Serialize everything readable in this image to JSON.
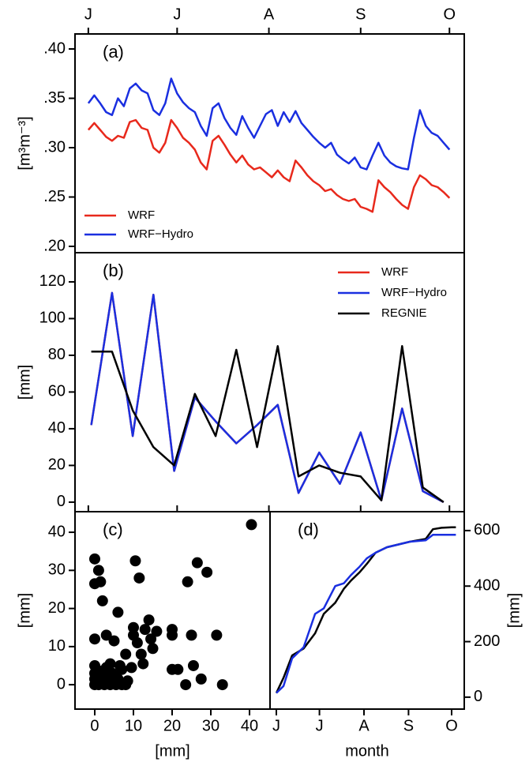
{
  "chart_data": [
    {
      "type": "line",
      "panel_label": "(a)",
      "y_label": "[m³m⁻³]",
      "x": [
        0,
        2,
        4,
        6,
        8,
        10,
        12,
        14,
        16,
        18,
        20,
        22,
        24,
        26,
        28,
        30,
        32,
        34,
        36,
        38,
        40,
        42,
        44,
        46,
        48,
        50,
        52,
        54,
        56,
        58,
        60,
        62,
        64,
        66,
        68,
        70,
        72,
        74,
        76,
        78,
        80,
        82,
        84,
        86,
        88,
        90,
        92,
        94,
        96,
        98,
        100,
        102,
        104,
        106,
        108,
        110,
        112,
        114,
        116,
        118,
        120,
        122
      ],
      "xlim": [
        -4.5,
        127
      ],
      "xticks": [
        {
          "value": 0,
          "label": "J"
        },
        {
          "value": 30,
          "label": "J"
        },
        {
          "value": 61,
          "label": "A"
        },
        {
          "value": 92,
          "label": "S"
        },
        {
          "value": 122,
          "label": "O"
        }
      ],
      "xaxis_side": "top",
      "ylim": [
        0.1936,
        0.4152
      ],
      "yticks": [
        {
          "value": 0.2,
          "label": ".20"
        },
        {
          "value": 0.25,
          "label": ".25"
        },
        {
          "value": 0.3,
          "label": ".30"
        },
        {
          "value": 0.35,
          "label": ".35"
        },
        {
          "value": 0.4,
          "label": ".40"
        }
      ],
      "legend": "bottom-left",
      "series": [
        {
          "name": "WRF",
          "color": "#e8291c",
          "values": [
            0.318,
            0.325,
            0.318,
            0.311,
            0.307,
            0.312,
            0.31,
            0.326,
            0.328,
            0.32,
            0.318,
            0.3,
            0.295,
            0.305,
            0.328,
            0.32,
            0.31,
            0.305,
            0.298,
            0.285,
            0.278,
            0.307,
            0.312,
            0.303,
            0.293,
            0.285,
            0.292,
            0.283,
            0.278,
            0.28,
            0.275,
            0.27,
            0.277,
            0.27,
            0.266,
            0.287,
            0.28,
            0.272,
            0.266,
            0.262,
            0.256,
            0.258,
            0.252,
            0.248,
            0.246,
            0.248,
            0.24,
            0.238,
            0.235,
            0.267,
            0.26,
            0.255,
            0.248,
            0.242,
            0.238,
            0.26,
            0.272,
            0.268,
            0.262,
            0.26,
            0.255,
            0.249
          ]
        },
        {
          "name": "WRF−Hydro",
          "color": "#1a2fe0",
          "values": [
            0.345,
            0.353,
            0.345,
            0.336,
            0.333,
            0.35,
            0.342,
            0.36,
            0.365,
            0.358,
            0.355,
            0.338,
            0.333,
            0.345,
            0.37,
            0.355,
            0.346,
            0.34,
            0.336,
            0.322,
            0.312,
            0.34,
            0.345,
            0.33,
            0.32,
            0.313,
            0.332,
            0.32,
            0.31,
            0.322,
            0.334,
            0.338,
            0.322,
            0.336,
            0.326,
            0.337,
            0.325,
            0.318,
            0.311,
            0.305,
            0.3,
            0.305,
            0.293,
            0.288,
            0.284,
            0.29,
            0.28,
            0.278,
            0.292,
            0.305,
            0.292,
            0.285,
            0.281,
            0.279,
            0.278,
            0.31,
            0.338,
            0.322,
            0.315,
            0.312,
            0.305,
            0.298
          ]
        }
      ]
    },
    {
      "type": "line",
      "panel_label": "(b)",
      "y_label": "[mm]",
      "x": [
        1,
        8,
        15,
        22,
        29,
        36,
        43,
        50,
        57,
        64,
        71,
        78,
        85,
        92,
        99,
        106,
        113,
        120
      ],
      "xlim": [
        -4.5,
        127
      ],
      "ylim": [
        -5.2,
        135.9
      ],
      "yticks": [
        0,
        20,
        40,
        60,
        80,
        100,
        120
      ],
      "legend": "top-right",
      "series": [
        {
          "name": "WRF",
          "color": "#e8291c",
          "values": [
            42,
            114,
            36,
            113,
            17,
            57,
            44,
            32,
            42,
            53,
            5,
            27,
            10,
            38,
            1,
            51,
            6,
            0
          ]
        },
        {
          "name": "WRF−Hydro",
          "color": "#1a2fe0",
          "values": [
            42,
            114,
            36,
            113,
            17,
            57,
            44,
            32,
            42,
            53,
            5,
            27,
            10,
            38,
            1,
            51,
            6,
            0
          ]
        },
        {
          "name": "REGNIE",
          "color": "#000000",
          "values": [
            82,
            82,
            50,
            30,
            20,
            59,
            36,
            83,
            30,
            85,
            14,
            20,
            16,
            14,
            1,
            85,
            8,
            0
          ]
        }
      ]
    },
    {
      "type": "scatter",
      "panel_label": "(c)",
      "y_label": "[mm]",
      "x_label": "[mm]",
      "color": "#000000",
      "x": [
        40.5,
        0,
        1,
        1.5,
        0,
        2,
        10.5,
        11.5,
        26.5,
        29,
        24,
        6,
        0,
        3,
        5,
        8,
        10,
        10,
        11,
        12,
        13,
        14,
        14.5,
        15,
        16,
        20,
        20,
        25,
        31.5,
        20,
        21.5,
        23.5,
        25.5,
        27.5,
        33,
        12.5,
        9.5,
        7,
        8.5,
        0,
        0,
        0,
        0,
        1,
        2,
        2,
        3,
        3.5,
        4,
        4.5,
        5,
        5.5,
        6,
        7,
        1,
        2.5,
        0.5,
        4,
        6.5,
        8
      ],
      "values": [
        42,
        33,
        30,
        27,
        26.5,
        22,
        32.5,
        28,
        32,
        29.5,
        27,
        19,
        12,
        13,
        11.5,
        8,
        15,
        13,
        11,
        8,
        14.5,
        17,
        12,
        9.5,
        14,
        14.5,
        13,
        13,
        13,
        4,
        4,
        0,
        5,
        1.5,
        0,
        5.5,
        4.5,
        4,
        1,
        5,
        3,
        1.5,
        0,
        0,
        1,
        3,
        4.5,
        1.5,
        0,
        3,
        2,
        0,
        1.5,
        0,
        2,
        0,
        4,
        5.5,
        5,
        0
      ],
      "xlim": [
        -5.1,
        45.3
      ],
      "xticks": [
        0,
        10,
        20,
        30,
        40
      ],
      "xaxis_side": "bottom",
      "ylim": [
        -6.4,
        45.4
      ],
      "yticks": [
        0,
        10,
        20,
        30,
        40
      ]
    },
    {
      "type": "line",
      "panel_label": "(d)",
      "y_label": "[mm]",
      "x_label": "month",
      "yaxis_side": "right",
      "x": [
        0,
        5,
        11,
        19,
        27,
        33,
        41,
        47,
        52,
        58,
        63,
        69,
        77,
        85,
        93,
        104,
        109,
        115,
        122,
        125
      ],
      "xlim": [
        -4.4,
        130.8
      ],
      "xticks": [
        {
          "value": 0,
          "label": "J"
        },
        {
          "value": 30,
          "label": "J"
        },
        {
          "value": 61,
          "label": "A"
        },
        {
          "value": 92,
          "label": "S"
        },
        {
          "value": 122,
          "label": "O"
        }
      ],
      "xaxis_side": "bottom",
      "ylim": [
        -43,
        668
      ],
      "yticks": [
        0,
        200,
        400,
        600
      ],
      "series": [
        {
          "name": "REGNIE",
          "color": "#000000",
          "values": [
            15,
            70,
            150,
            175,
            230,
            300,
            340,
            390,
            420,
            450,
            480,
            520,
            540,
            550,
            560,
            570,
            605,
            610,
            612,
            612
          ]
        },
        {
          "name": "WRF−Hydro",
          "color": "#1a2fe0",
          "values": [
            15,
            40,
            140,
            180,
            300,
            320,
            400,
            410,
            440,
            470,
            500,
            520,
            540,
            550,
            560,
            565,
            585,
            585,
            585,
            585
          ]
        }
      ]
    }
  ]
}
